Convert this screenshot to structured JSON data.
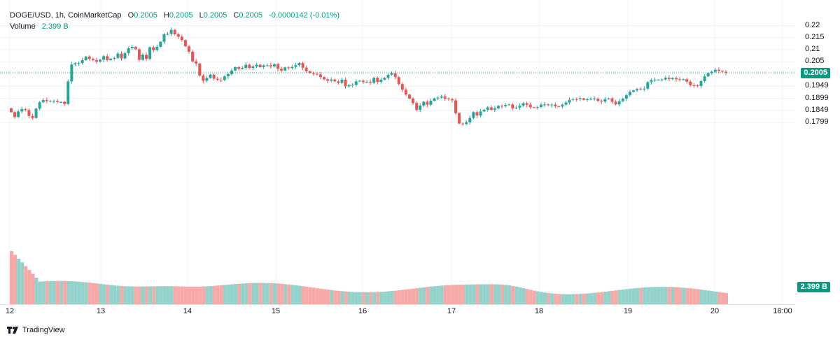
{
  "header": {
    "symbol": "DOGE/USD, 1h, CoinMarketCap",
    "open_label": "O",
    "open": "0.2005",
    "high_label": "H",
    "high": "0.2005",
    "low_label": "L",
    "low": "0.2005",
    "close_label": "C",
    "close": "0.2005",
    "change": "-0.0000142 (-0.01%)",
    "volume_label": "Volume",
    "volume_value": "2.399 B"
  },
  "price_badge": "0.2005",
  "volume_badge": "2.399 B",
  "watermark": "TradingView",
  "colors": {
    "up": "#26a69a",
    "down": "#ef5350",
    "up_vol": "#92d2cb",
    "down_vol": "#f7a9a7",
    "grid": "#f0f3fa",
    "accent": "#089981"
  },
  "icons": {
    "logo": "tradingview-logo-icon"
  },
  "chart_data": {
    "type": "candlestick",
    "interval": "1h",
    "y_ticks": [
      "0.22",
      "0.215",
      "0.21",
      "0.205",
      "0.1949",
      "0.1899",
      "0.1849",
      "0.1799"
    ],
    "y_range": [
      0.1775,
      0.2205
    ],
    "x_ticks": [
      "12",
      "13",
      "14",
      "15",
      "16",
      "17",
      "18",
      "19",
      "20",
      "18:00"
    ],
    "last_price": 0.2005,
    "grid": true,
    "series": [
      {
        "name": "price",
        "close": [
          0.1842,
          0.1822,
          0.1845,
          0.1855,
          0.1851,
          0.1826,
          0.1818,
          0.1857,
          0.1883,
          0.1892,
          0.1888,
          0.1888,
          0.1888,
          0.1884,
          0.1884,
          0.1876,
          0.1969,
          0.2039,
          0.2044,
          0.2045,
          0.2057,
          0.2072,
          0.2062,
          0.2057,
          0.2051,
          0.2059,
          0.2073,
          0.2057,
          0.2063,
          0.2066,
          0.2084,
          0.2064,
          0.2086,
          0.2106,
          0.2112,
          0.2102,
          0.2058,
          0.2079,
          0.2062,
          0.211,
          0.2099,
          0.2112,
          0.2133,
          0.2164,
          0.2165,
          0.2182,
          0.2164,
          0.2154,
          0.214,
          0.2114,
          0.2092,
          0.2052,
          0.2043,
          0.1993,
          0.1972,
          0.1983,
          0.1997,
          0.198,
          0.1976,
          0.1975,
          0.199,
          0.1999,
          0.2014,
          0.2028,
          0.2021,
          0.2025,
          0.2038,
          0.2025,
          0.2031,
          0.2038,
          0.2028,
          0.2035,
          0.2036,
          0.2031,
          0.204,
          0.2021,
          0.2014,
          0.2027,
          0.2024,
          0.2029,
          0.2036,
          0.2045,
          0.2026,
          0.2011,
          0.2004,
          0.2,
          0.1998,
          0.1987,
          0.1978,
          0.1972,
          0.1977,
          0.1969,
          0.1963,
          0.1976,
          0.1949,
          0.1954,
          0.1955,
          0.1969,
          0.1972,
          0.1966,
          0.1967,
          0.1963,
          0.1984,
          0.1967,
          0.1976,
          0.1984,
          0.1996,
          0.2003,
          0.1987,
          0.1958,
          0.1935,
          0.1915,
          0.1898,
          0.188,
          0.1851,
          0.1869,
          0.1885,
          0.1873,
          0.1889,
          0.1899,
          0.1902,
          0.1907,
          0.1898,
          0.1895,
          0.1891,
          0.1838,
          0.1795,
          0.1793,
          0.18,
          0.1818,
          0.1842,
          0.1828,
          0.1845,
          0.1852,
          0.1862,
          0.1852,
          0.1858,
          0.1868,
          0.1867,
          0.1872,
          0.1874,
          0.1858,
          0.1861,
          0.1869,
          0.1879,
          0.1873,
          0.1862,
          0.1861,
          0.1863,
          0.1873,
          0.1874,
          0.1871,
          0.1873,
          0.1866,
          0.1865,
          0.1873,
          0.1882,
          0.1893,
          0.1896,
          0.1895,
          0.1899,
          0.1893,
          0.1895,
          0.1897,
          0.1898,
          0.1889,
          0.1886,
          0.1896,
          0.1899,
          0.1885,
          0.1874,
          0.1887,
          0.1898,
          0.1912,
          0.1926,
          0.1932,
          0.1938,
          0.1937,
          0.1939,
          0.1966,
          0.1974,
          0.1976,
          0.1976,
          0.1977,
          0.1984,
          0.1979,
          0.1983,
          0.1978,
          0.1975,
          0.1978,
          0.1968,
          0.1953,
          0.1952,
          0.195,
          0.197,
          0.199,
          0.2004,
          0.2009,
          0.2017,
          0.2012,
          0.2009,
          0.2005
        ]
      },
      {
        "name": "Volume",
        "last": "2.399 B"
      }
    ]
  }
}
